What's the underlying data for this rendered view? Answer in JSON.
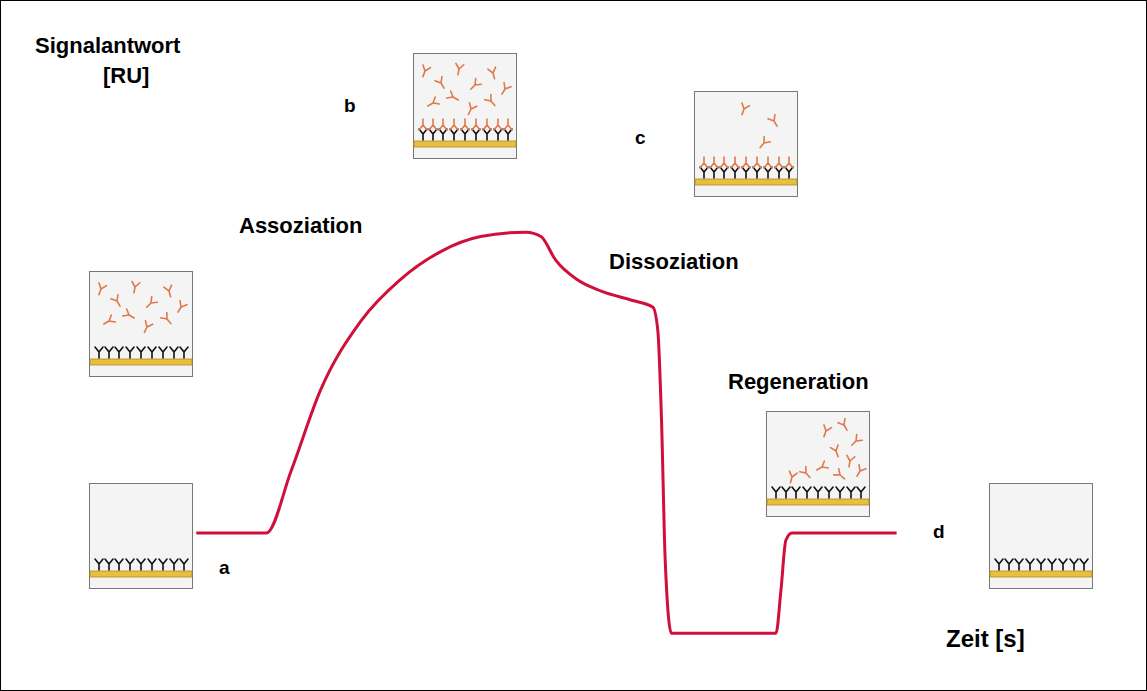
{
  "chart_data": {
    "type": "line",
    "y_label": "Signalantwort [RU]",
    "x_label": "Zeit [s]",
    "x": [
      0.49,
      1.06,
      1.26,
      1.5,
      1.83,
      2.15,
      2.48,
      2.8,
      3.17,
      3.29,
      3.41,
      3.58,
      3.78,
      4.02,
      4.2,
      4.24,
      4.27,
      4.3,
      4.35,
      5.2,
      5.24,
      5.28,
      5.33,
      6.18
    ],
    "values": [
      0.54,
      0.54,
      0.96,
      1.51,
      1.98,
      2.26,
      2.45,
      2.55,
      2.58,
      2.55,
      2.39,
      2.26,
      2.18,
      2.12,
      2.07,
      1.91,
      1.3,
      0.35,
      -0.14,
      -0.14,
      0.15,
      0.49,
      0.54,
      0.54
    ],
    "color": "#d0103a",
    "xlim": [
      0,
      6.5
    ],
    "ylim": [
      -0.2,
      3.3
    ],
    "xticks": [
      1,
      2,
      3,
      4,
      5,
      6
    ],
    "yticks": [
      1,
      2,
      3
    ],
    "tick_labels": false,
    "grid": false,
    "annotations": [
      "Assoziation",
      "Dissoziation",
      "Regeneration",
      "a",
      "b",
      "c",
      "d"
    ]
  }
}
